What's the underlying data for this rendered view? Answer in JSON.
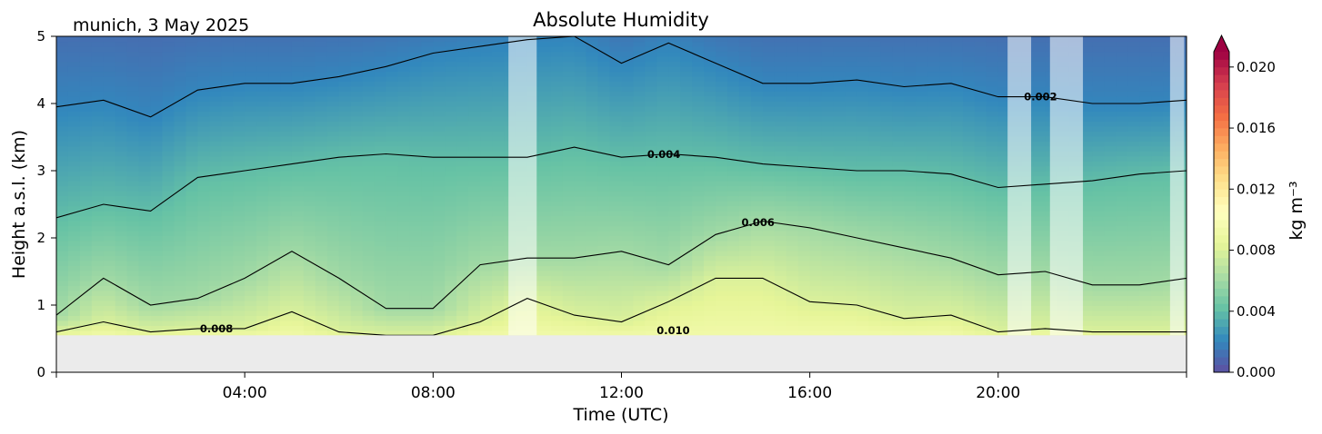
{
  "chart_data": {
    "type": "heatmap",
    "title": "Absolute Humidity",
    "subtitle": "munich, 3 May 2025",
    "xlabel": "Time (UTC)",
    "ylabel": "Height a.s.l. (km)",
    "xlim_hours": [
      0,
      24
    ],
    "ylim_km": [
      0,
      5
    ],
    "xticks": [
      {
        "hour": 4,
        "label": "04:00"
      },
      {
        "hour": 8,
        "label": "08:00"
      },
      {
        "hour": 12,
        "label": "12:00"
      },
      {
        "hour": 16,
        "label": "16:00"
      },
      {
        "hour": 20,
        "label": "20:00"
      }
    ],
    "yticks": [
      {
        "value": 0,
        "label": "0"
      },
      {
        "value": 1,
        "label": "1"
      },
      {
        "value": 2,
        "label": "2"
      },
      {
        "value": 3,
        "label": "3"
      },
      {
        "value": 4,
        "label": "4"
      },
      {
        "value": 5,
        "label": "5"
      }
    ],
    "colorbar": {
      "label": "kg m⁻³",
      "vmin": 0.0,
      "vmax": 0.021,
      "extend": "max",
      "ticks": [
        {
          "value": 0.0,
          "label": "0.000"
        },
        {
          "value": 0.004,
          "label": "0.004"
        },
        {
          "value": 0.008,
          "label": "0.008"
        },
        {
          "value": 0.012,
          "label": "0.012"
        },
        {
          "value": 0.016,
          "label": "0.016"
        },
        {
          "value": 0.02,
          "label": "0.020"
        }
      ],
      "colormap": "Spectral_r",
      "extend_color": "#9e0142"
    },
    "ground_height_km": 0.55,
    "ground_color": "#ebebeb",
    "data_gaps_hours": [
      [
        9.6,
        10.2
      ],
      [
        20.2,
        20.7
      ],
      [
        21.1,
        21.8
      ],
      [
        23.65,
        23.95
      ]
    ],
    "contour_levels": [
      {
        "value": 0.002,
        "label": "0.002",
        "label_at_hour": 20.9,
        "heights_km": [
          3.95,
          4.05,
          3.8,
          4.2,
          4.3,
          4.3,
          4.4,
          4.55,
          4.75,
          4.85,
          4.95,
          5.0,
          4.6,
          4.9,
          4.6,
          4.3,
          4.3,
          4.35,
          4.25,
          4.3,
          4.1,
          4.1,
          4.0,
          4.0,
          4.05
        ]
      },
      {
        "value": 0.004,
        "label": "0.004",
        "label_at_hour": 12.9,
        "heights_km": [
          2.3,
          2.5,
          2.4,
          2.9,
          3.0,
          3.1,
          3.2,
          3.25,
          3.2,
          3.2,
          3.2,
          3.35,
          3.2,
          3.25,
          3.2,
          3.1,
          3.05,
          3.0,
          3.0,
          2.95,
          2.75,
          2.8,
          2.85,
          2.95,
          3.0
        ]
      },
      {
        "value": 0.006,
        "label": "0.006",
        "label_at_hour": 14.9,
        "heights_km": [
          0.85,
          1.4,
          1.0,
          1.1,
          1.4,
          1.8,
          1.4,
          0.95,
          0.95,
          1.6,
          1.7,
          1.7,
          1.8,
          1.6,
          2.05,
          2.25,
          2.15,
          2.0,
          1.85,
          1.7,
          1.45,
          1.5,
          1.3,
          1.3,
          1.4
        ]
      },
      {
        "value": 0.008,
        "label": "0.008",
        "label_at_hour": 3.4,
        "heights_km": [
          0.6,
          0.75,
          0.6,
          0.65,
          0.65,
          0.9,
          0.6,
          0.55,
          0.55,
          0.75,
          1.1,
          0.85,
          0.75,
          1.05,
          1.4,
          1.4,
          1.05,
          1.0,
          0.8,
          0.85,
          0.6,
          0.65,
          0.6,
          0.6,
          0.6
        ]
      },
      {
        "value": 0.01,
        "label": "0.010",
        "label_at_hour": 13.1,
        "heights_km": []
      }
    ]
  }
}
